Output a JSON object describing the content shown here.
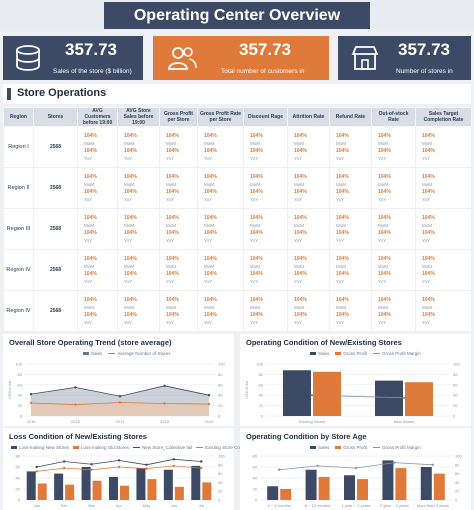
{
  "header": {
    "title": "Operating Center Overview"
  },
  "kpis": [
    {
      "value": "357.73",
      "label": "Sales of the store ($ billion)",
      "icon": "database-icon",
      "color": "#3c4a66"
    },
    {
      "value": "357.73",
      "label": "Total number of customers in",
      "icon": "users-icon",
      "color": "#e07a3a"
    },
    {
      "value": "357.73",
      "label": "Number of stores in",
      "icon": "store-icon",
      "color": "#3c4a66"
    }
  ],
  "section": {
    "title": "Store Operations"
  },
  "table": {
    "headers": [
      "Region",
      "Stores",
      "AVG Customers before 19:00",
      "AVG Store Sales before 19:00",
      "Gross Profit per Store",
      "Gross Profit Rate per Store",
      "Discount Rage",
      "Attrition Rate",
      "Refund Rate",
      "Out-of-stock Rate",
      "Sales Target Completion Rate"
    ],
    "stores_value": "2568",
    "pct_value": "104%",
    "mom_label": "MoM",
    "yoy_label": "YoY",
    "regions": [
      "Region I",
      "Region II",
      "Region III",
      "Region IV",
      "Region IV"
    ]
  },
  "charts": {
    "trend": {
      "title": "Overall Store Operating Trend (store average)",
      "legend": [
        "Sales",
        "Average Number of Stores"
      ],
      "ylabel": "USD in bn",
      "yticks_left": [
        "100",
        "80",
        "60",
        "40",
        "20",
        "0"
      ],
      "yticks_right": [
        "100",
        "80",
        "60",
        "40",
        "20",
        "0"
      ],
      "x": [
        "2015",
        "2016",
        "2017",
        "2018",
        "2019"
      ]
    },
    "new_existing": {
      "title": "Operating Condition of New/Existing Stores",
      "legend": [
        "Sales",
        "Gross Profit",
        "Gross Profit Margin"
      ],
      "ylabel": "USD in bn",
      "yticks_left": [
        "100",
        "80",
        "60",
        "40",
        "20",
        "0"
      ],
      "yticks_right": [
        "100",
        "80",
        "60",
        "40",
        "20",
        "0"
      ],
      "categories": [
        "Existing Stores",
        "New Stores"
      ]
    },
    "loss": {
      "title": "Loss Condition of New/Existing Stores",
      "legend": [
        "Loss-making New Stores",
        "Loss-making Old Stores",
        "New Store_Collective fail",
        "Existing Store Collective Rate"
      ],
      "yticks_left": [
        "80",
        "60",
        "40",
        "20",
        "0"
      ],
      "yticks_right": [
        "100",
        "80",
        "60",
        "40",
        "20",
        "0"
      ],
      "categories": [
        "Jan",
        "Feb",
        "Mar",
        "Apr",
        "May",
        "Jun",
        "Jul"
      ]
    },
    "age": {
      "title": "Operating Condition by Store Age",
      "legend": [
        "Sales",
        "Gross Profit",
        "Gross Profit Margin"
      ],
      "yticks_left": [
        "80",
        "60",
        "40",
        "20",
        "0"
      ],
      "yticks_right": [
        "100",
        "80",
        "60",
        "40",
        "20",
        "0"
      ],
      "categories": [
        "0 ~ 6 months",
        "6 ~ 12 months",
        "1 year ~ 2 years",
        "2 year ~ 3 years",
        "More than 3 years"
      ]
    }
  },
  "chart_data": [
    {
      "type": "line",
      "title": "Overall Store Operating Trend (store average)",
      "x": [
        "2015",
        "2016",
        "2017",
        "2018",
        "2019"
      ],
      "ylim": [
        0,
        100
      ],
      "series": [
        {
          "name": "Sales",
          "values": [
            42,
            55,
            38,
            58,
            40
          ]
        },
        {
          "name": "Average Number of Stores",
          "values": [
            25,
            22,
            26,
            24,
            23
          ]
        }
      ]
    },
    {
      "type": "bar",
      "title": "Operating Condition of New/Existing Stores",
      "categories": [
        "Existing Stores",
        "New Stores"
      ],
      "ylim": [
        0,
        100
      ],
      "series": [
        {
          "name": "Sales",
          "values": [
            88,
            68
          ]
        },
        {
          "name": "Gross Profit",
          "values": [
            85,
            65
          ]
        },
        {
          "name": "Gross Profit Margin",
          "values": [
            40,
            35
          ]
        }
      ]
    },
    {
      "type": "bar",
      "title": "Loss Condition of New/Existing Stores",
      "categories": [
        "Jan",
        "Feb",
        "Mar",
        "Apr",
        "May",
        "Jun",
        "Jul"
      ],
      "ylim": [
        0,
        80
      ],
      "series": [
        {
          "name": "Loss-making New Stores",
          "values": [
            52,
            48,
            60,
            42,
            58,
            55,
            62
          ]
        },
        {
          "name": "Loss-making Old Stores",
          "values": [
            30,
            28,
            35,
            26,
            38,
            24,
            32
          ]
        },
        {
          "name": "New Store_Collective fail",
          "values": [
            60,
            70,
            65,
            72,
            64,
            74,
            70
          ]
        },
        {
          "name": "Existing Store Collective Rate",
          "values": [
            52,
            58,
            55,
            60,
            57,
            62,
            58
          ]
        }
      ]
    },
    {
      "type": "bar",
      "title": "Operating Condition by Store Age",
      "categories": [
        "0 ~ 6 months",
        "6 ~ 12 months",
        "1 year ~ 2 years",
        "2 year ~ 3 years",
        "More than 3 years"
      ],
      "ylim": [
        0,
        80
      ],
      "series": [
        {
          "name": "Sales",
          "values": [
            25,
            55,
            45,
            72,
            60
          ]
        },
        {
          "name": "Gross Profit",
          "values": [
            20,
            42,
            38,
            58,
            48
          ]
        },
        {
          "name": "Gross Profit Margin",
          "values": [
            55,
            62,
            58,
            68,
            64
          ]
        }
      ]
    }
  ]
}
